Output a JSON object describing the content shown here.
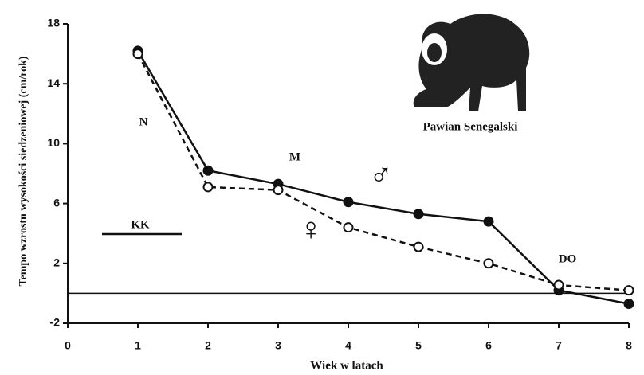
{
  "chart_data": {
    "type": "line",
    "x_label": "Wiek w latach",
    "y_label": "Tempo wzrostu wysokości siedzeniowej (cm/rok)",
    "x": [
      1,
      2,
      3,
      4,
      5,
      6,
      7,
      8
    ],
    "series": [
      {
        "name": "♂",
        "color": "#111111",
        "style": "solid",
        "marker": "filled",
        "values": [
          16.2,
          8.2,
          7.3,
          6.1,
          5.3,
          4.8,
          0.2,
          -0.7
        ]
      },
      {
        "name": "♀",
        "color": "#111111",
        "style": "dashed",
        "marker": "open",
        "values": [
          16.0,
          7.1,
          6.9,
          4.4,
          3.1,
          2.0,
          0.55,
          0.2
        ]
      }
    ],
    "xlim": [
      0,
      8
    ],
    "xticks": [
      0,
      1,
      2,
      3,
      4,
      5,
      6,
      7,
      8
    ],
    "ylim": [
      -2,
      18
    ],
    "yticks": [
      -2,
      2,
      6,
      10,
      14,
      18
    ],
    "annotations": [
      "N",
      "M",
      "KK",
      "DO",
      "Pawian Senegalski"
    ]
  }
}
